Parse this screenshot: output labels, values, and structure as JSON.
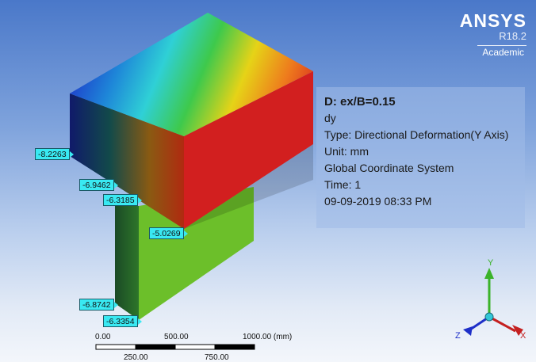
{
  "brand": {
    "name": "ANSYS",
    "version": "R18.2",
    "edition": "Academic"
  },
  "info": {
    "title": "D: ex/B=0.15",
    "result": "dy",
    "type": "Type: Directional Deformation(Y Axis)",
    "unit": "Unit: mm",
    "coord": "Global Coordinate System",
    "time": "Time: 1",
    "datetime": "09-09-2019 08:33 PM"
  },
  "probes": [
    "-8.2263",
    "-6.9462",
    "-6.3185",
    "-5.0269",
    "-6.8742",
    "-6.3354"
  ],
  "scale": {
    "top": [
      "0.00",
      "500.00",
      "1000.00 (mm)"
    ],
    "bottom": [
      "250.00",
      "750.00"
    ]
  },
  "triad": {
    "x": "X",
    "y": "Y",
    "z": "Z"
  },
  "colors": {
    "red": "#d42020",
    "green": "#6cbf2a",
    "blue": "#1e2fc8",
    "probe": "#39e9f2"
  }
}
